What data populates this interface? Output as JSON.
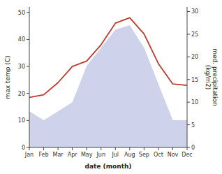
{
  "chart_data": {
    "type": "line",
    "categories": [
      "Jan",
      "Feb",
      "Mar",
      "Apr",
      "May",
      "Jun",
      "Jul",
      "Aug",
      "Sep",
      "Oct",
      "Nov",
      "Dec"
    ],
    "series": [
      {
        "type": "line",
        "color": "#c0392b",
        "axis": "y",
        "values": [
          18.5,
          19.5,
          24,
          30,
          32,
          38,
          46,
          48,
          42,
          31,
          23.5,
          23
        ]
      },
      {
        "type": "area",
        "color": "#c5cae8",
        "axis": "y2",
        "values": [
          8,
          6,
          8,
          10,
          18,
          22,
          26,
          27,
          22,
          14,
          6,
          6
        ]
      }
    ],
    "xlabel": "date (month)",
    "ylabel": "max temp (C)",
    "y2label": "med. precipitation\n(kg/m2)",
    "ylim": [
      0,
      52
    ],
    "yticks": [
      0,
      10,
      20,
      30,
      40,
      50
    ],
    "y2lim": [
      0,
      31
    ],
    "y2ticks": [
      0,
      5,
      10,
      15,
      20,
      25,
      30
    ],
    "grid": false
  }
}
